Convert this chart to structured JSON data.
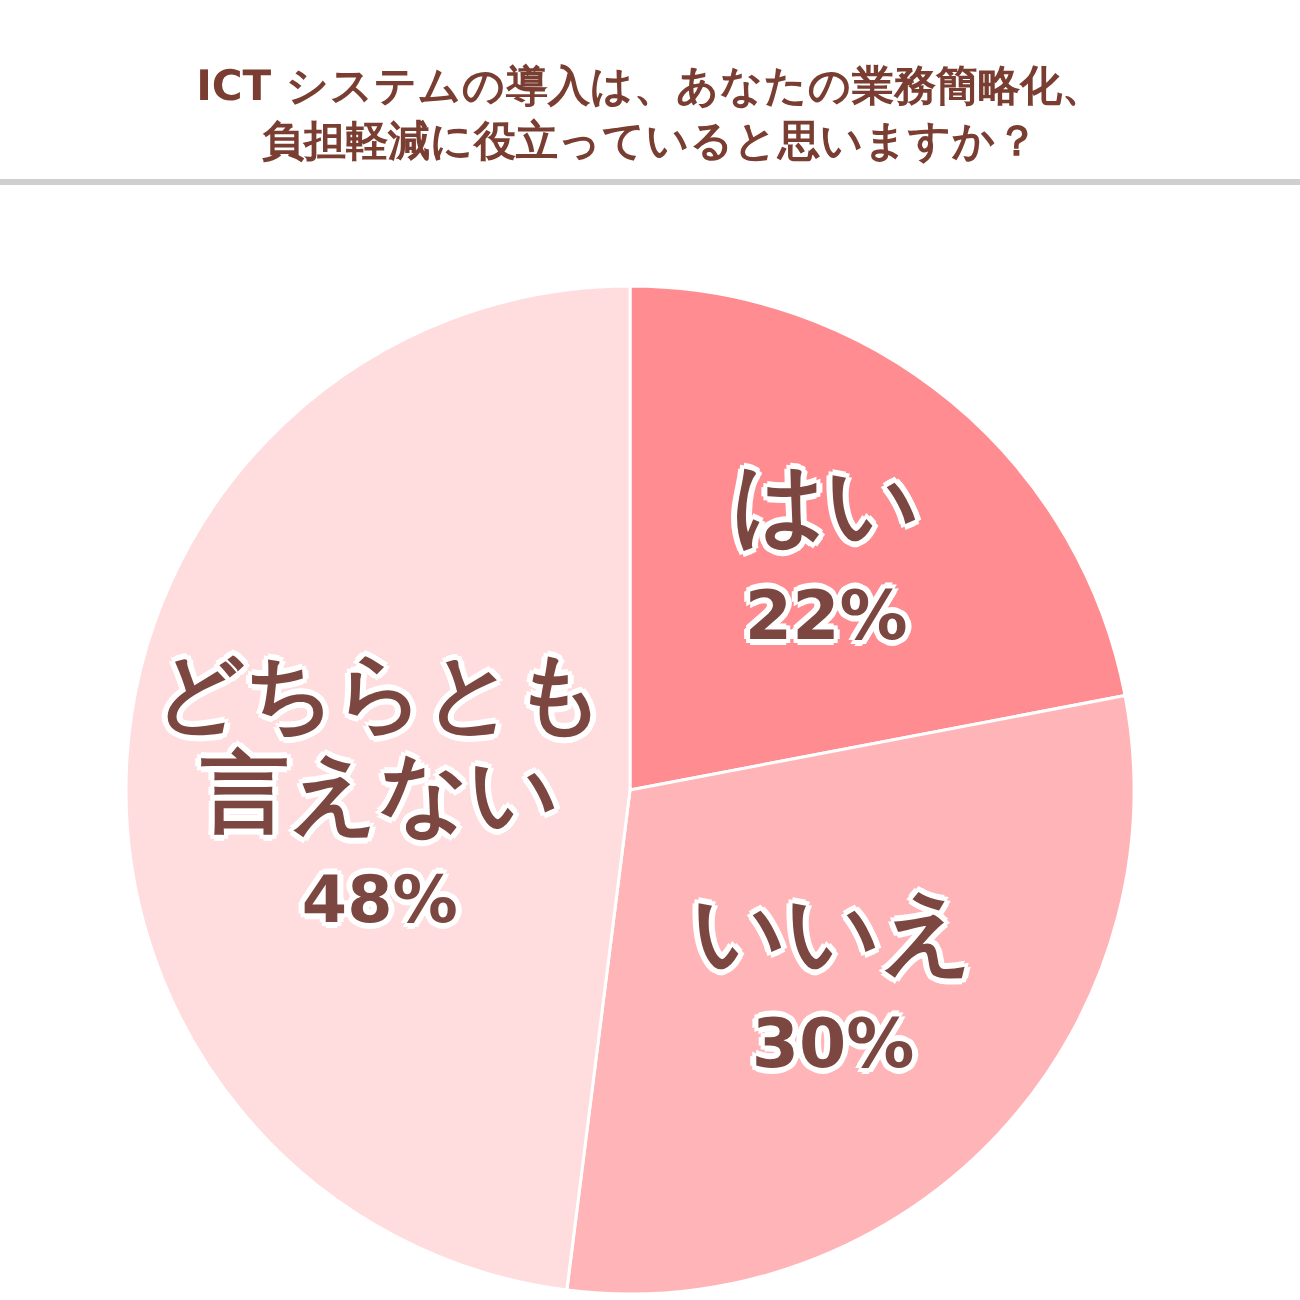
{
  "chart_data": {
    "type": "pie",
    "title": "ICT システムの導入は、あなたの業務簡略化、負担軽減に役立っていると思いますか？",
    "categories": [
      "はい",
      "いいえ",
      "どちらとも言えない"
    ],
    "values": [
      22,
      30,
      48
    ],
    "value_labels": [
      "22%",
      "30%",
      "48%"
    ],
    "colors": [
      "#ff8c91",
      "#ffb5b7",
      "#ffdcde"
    ],
    "legend": false
  }
}
